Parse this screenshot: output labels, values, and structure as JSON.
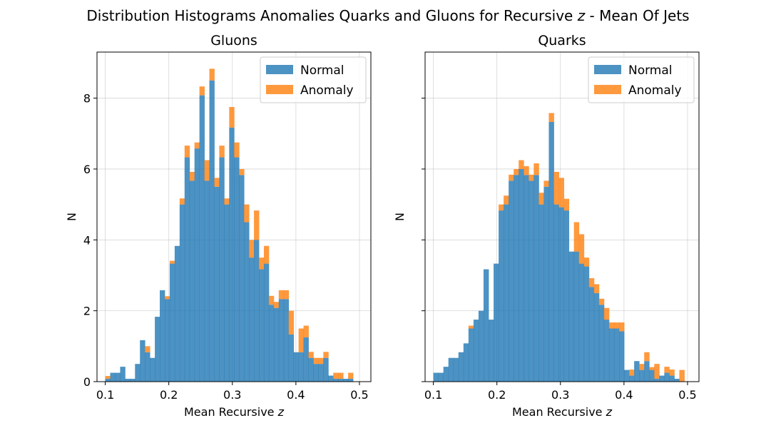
{
  "figure": {
    "title_prefix": "Distribution Histograms Anomalies Quarks and Gluons for Recursive ",
    "title_var": "z",
    "title_suffix": " - Mean Of Jets"
  },
  "colors": {
    "normal": "#1f77b4",
    "anomaly": "#ff7f0e"
  },
  "chart_data": [
    {
      "type": "bar",
      "subtype": "stacked-histogram",
      "title": "Gluons",
      "xlabel_prefix": "Mean Recursive ",
      "xlabel_var": "z",
      "ylabel": "N",
      "xlim": [
        0.087,
        0.518
      ],
      "ylim": [
        0,
        9.3
      ],
      "xticks": [
        "0.1",
        "0.2",
        "0.3",
        "0.4",
        "0.5"
      ],
      "yticks": [
        "0",
        "2",
        "4",
        "6",
        "8"
      ],
      "grid": true,
      "legend": {
        "position": "top-right",
        "entries": [
          "Normal",
          "Anomaly"
        ]
      },
      "bin_start": 0.1,
      "bin_width": 0.0078,
      "series": [
        {
          "name": "Normal",
          "values": [
            0.08,
            0.25,
            0.25,
            0.42,
            0.08,
            0.08,
            0.5,
            1.17,
            0.83,
            0.67,
            1.83,
            2.58,
            2.33,
            3.33,
            3.83,
            5.0,
            6.33,
            5.67,
            6.58,
            8.08,
            5.67,
            8.5,
            5.5,
            6.33,
            5.0,
            7.17,
            6.33,
            5.83,
            4.5,
            3.5,
            4.0,
            3.17,
            3.33,
            2.17,
            2.08,
            2.33,
            2.33,
            1.33,
            0.83,
            0.83,
            1.25,
            0.67,
            0.5,
            0.5,
            0.67,
            0.17,
            0.08,
            0.08,
            0.08,
            0.08,
            0.0,
            0.0,
            0.0,
            0.0
          ]
        },
        {
          "name": "Anomaly",
          "values": [
            0.08,
            0.0,
            0.0,
            0.0,
            0.0,
            0.0,
            0.0,
            0.0,
            0.17,
            0.0,
            0.0,
            0.0,
            0.08,
            0.08,
            0.0,
            0.17,
            0.33,
            0.25,
            0.17,
            0.25,
            0.58,
            0.33,
            0.25,
            0.33,
            0.17,
            0.58,
            0.42,
            0.17,
            0.5,
            0.5,
            0.83,
            0.33,
            0.5,
            0.25,
            0.17,
            0.25,
            0.25,
            0.67,
            0.0,
            0.67,
            0.33,
            0.17,
            0.17,
            0.17,
            0.17,
            0.0,
            0.17,
            0.17,
            0.0,
            0.17,
            0.0,
            0.0,
            0.0,
            0.0
          ]
        }
      ]
    },
    {
      "type": "bar",
      "subtype": "stacked-histogram",
      "title": "Quarks",
      "xlabel_prefix": "Mean Recursive ",
      "xlabel_var": "z",
      "ylabel": "N",
      "xlim": [
        0.087,
        0.518
      ],
      "ylim": [
        0,
        9.3
      ],
      "xticks": [
        "0.1",
        "0.2",
        "0.3",
        "0.4",
        "0.5"
      ],
      "yticks": [
        "0",
        "2",
        "4",
        "6",
        "8"
      ],
      "show_yticklabels": false,
      "grid": true,
      "legend": {
        "position": "top-right",
        "entries": [
          "Normal",
          "Anomaly"
        ]
      },
      "bin_start": 0.1,
      "bin_width": 0.0079,
      "series": [
        {
          "name": "Normal",
          "values": [
            0.25,
            0.25,
            0.42,
            0.67,
            0.67,
            0.83,
            1.08,
            1.5,
            1.75,
            2.0,
            3.17,
            1.75,
            3.33,
            4.83,
            5.0,
            5.67,
            5.83,
            6.0,
            5.83,
            5.67,
            5.83,
            5.0,
            5.5,
            7.33,
            5.0,
            4.92,
            4.83,
            3.67,
            3.67,
            3.33,
            3.25,
            2.67,
            2.5,
            2.17,
            1.75,
            1.5,
            1.5,
            1.42,
            0.33,
            0.17,
            0.58,
            0.33,
            0.58,
            0.33,
            0.08,
            0.17,
            0.25,
            0.17,
            0.08,
            0.0,
            0.0,
            0.0
          ]
        },
        {
          "name": "Anomaly",
          "values": [
            0.0,
            0.0,
            0.0,
            0.0,
            0.0,
            0.0,
            0.0,
            0.08,
            0.0,
            0.0,
            0.0,
            0.0,
            0.0,
            0.17,
            0.25,
            0.17,
            0.17,
            0.25,
            0.25,
            0.17,
            0.33,
            0.33,
            0.17,
            0.25,
            0.92,
            0.83,
            0.33,
            0.0,
            0.83,
            0.83,
            0.25,
            0.25,
            0.25,
            0.17,
            0.33,
            0.17,
            0.17,
            0.25,
            0.0,
            0.17,
            0.0,
            0.17,
            0.25,
            0.08,
            0.42,
            0.0,
            0.17,
            0.17,
            0.0,
            0.33,
            0.0,
            0.0
          ]
        }
      ]
    }
  ]
}
